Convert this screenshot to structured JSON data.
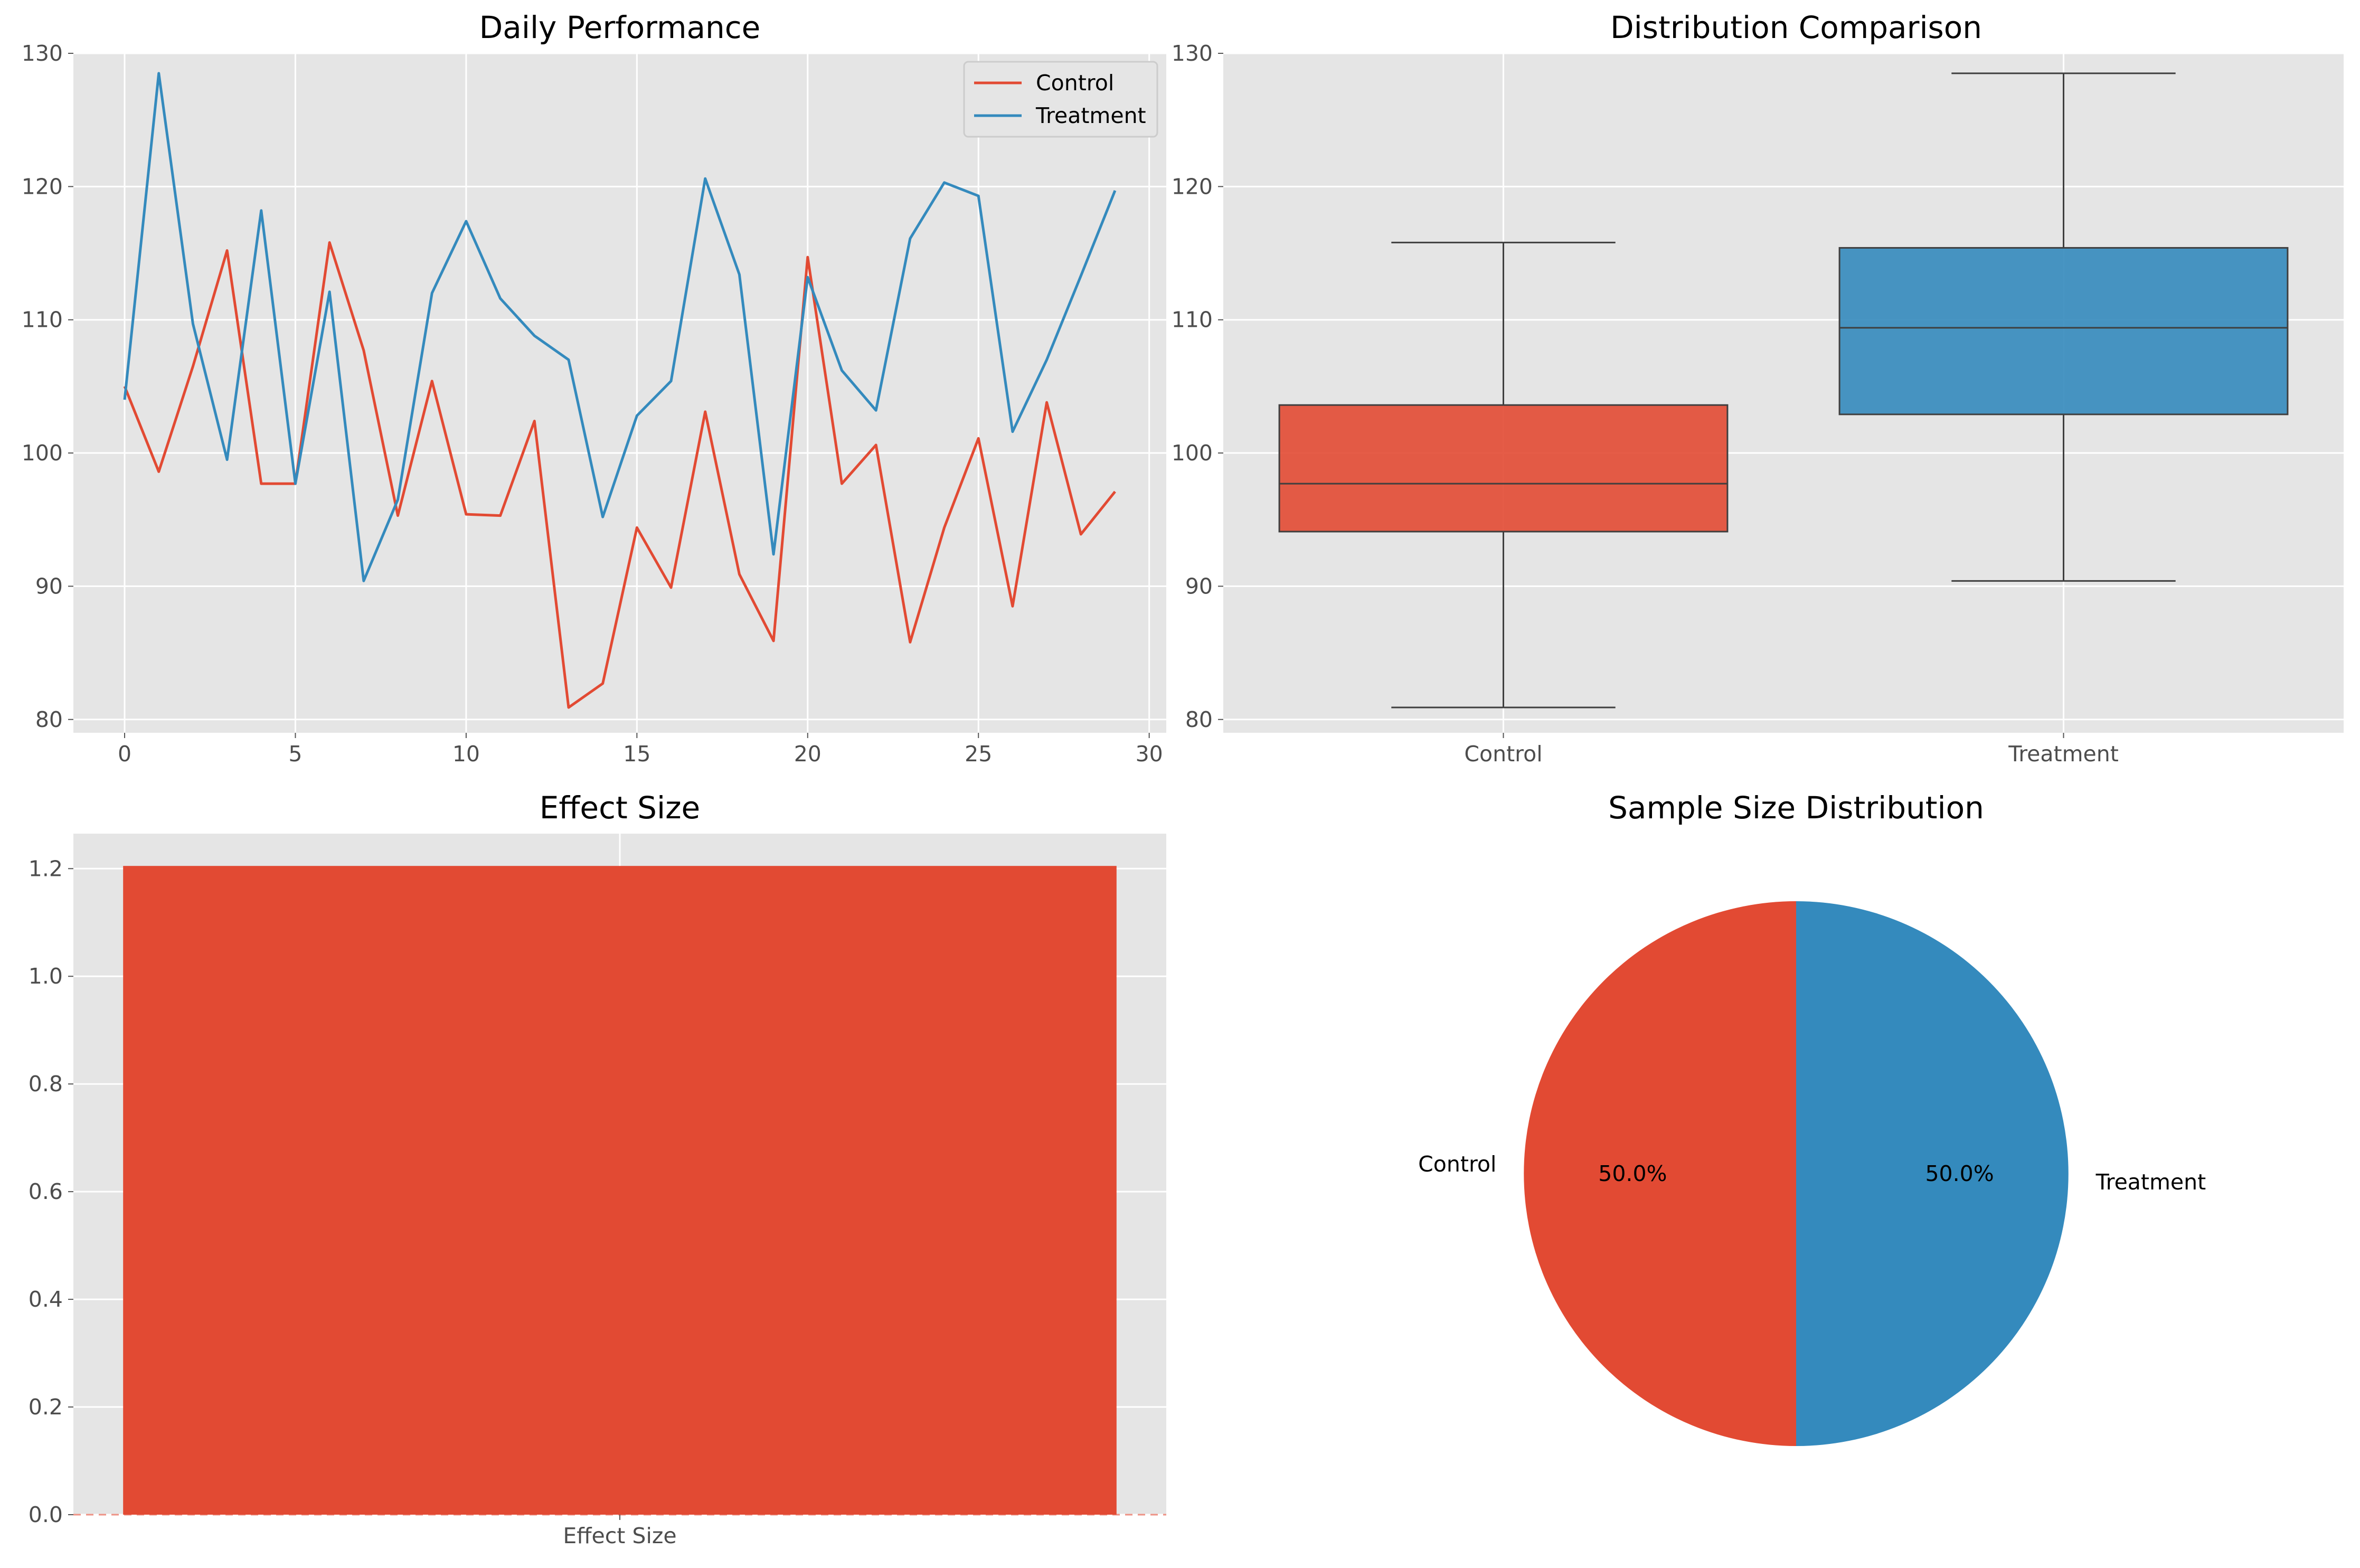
{
  "colors": {
    "red": "#E24A33",
    "blue": "#348ABD",
    "panel_bg": "#E5E5E5",
    "grid": "#FFFFFF",
    "tick_text": "#4D4D4D",
    "box_line": "#3F3F3F"
  },
  "chart_data": [
    {
      "type": "line",
      "title": "Daily Performance",
      "xlabel": "",
      "ylabel": "",
      "xlim": [
        -1.5,
        30.5
      ],
      "ylim": [
        79,
        130
      ],
      "xticks": [
        "0",
        "5",
        "10",
        "15",
        "20",
        "25",
        "30"
      ],
      "yticks": [
        "80",
        "90",
        "100",
        "110",
        "120",
        "130"
      ],
      "grid": true,
      "legend": "upper right",
      "x": [
        0,
        1,
        2,
        3,
        4,
        5,
        6,
        7,
        8,
        9,
        10,
        11,
        12,
        13,
        14,
        15,
        16,
        17,
        18,
        19,
        20,
        21,
        22,
        23,
        24,
        25,
        26,
        27,
        28,
        29
      ],
      "series": [
        {
          "name": "Control",
          "color": "#E24A33",
          "values": [
            105.0,
            98.6,
            106.5,
            115.2,
            97.7,
            97.7,
            115.8,
            107.7,
            95.3,
            105.4,
            95.4,
            95.3,
            102.4,
            80.9,
            82.7,
            94.4,
            89.9,
            103.1,
            90.9,
            85.9,
            114.7,
            97.7,
            100.6,
            85.8,
            94.4,
            101.1,
            88.5,
            103.8,
            93.9,
            97.1
          ]
        },
        {
          "name": "Treatment",
          "color": "#348ABD",
          "values": [
            104.0,
            128.5,
            109.7,
            99.5,
            118.2,
            97.7,
            112.1,
            90.4,
            96.5,
            112.0,
            117.4,
            111.6,
            108.8,
            107.0,
            95.2,
            102.8,
            105.4,
            120.6,
            113.4,
            92.4,
            113.2,
            106.2,
            103.2,
            116.1,
            120.3,
            119.3,
            101.6,
            107.0,
            113.3,
            119.7
          ]
        }
      ]
    },
    {
      "type": "box",
      "title": "Distribution Comparison",
      "ylim": [
        79,
        130
      ],
      "yticks": [
        "80",
        "90",
        "100",
        "110",
        "120",
        "130"
      ],
      "grid": true,
      "categories": [
        "Control",
        "Treatment"
      ],
      "boxes": [
        {
          "name": "Control",
          "color": "#E24A33",
          "min": 80.9,
          "q1": 94.1,
          "median": 97.7,
          "q3": 103.6,
          "max": 115.8
        },
        {
          "name": "Treatment",
          "color": "#348ABD",
          "min": 90.4,
          "q1": 102.9,
          "median": 109.4,
          "q3": 115.4,
          "max": 128.5
        }
      ]
    },
    {
      "type": "bar",
      "title": "Effect Size",
      "categories": [
        "Effect Size"
      ],
      "values": [
        1.205
      ],
      "ylim": [
        0,
        1.265
      ],
      "yticks": [
        "0.0",
        "0.2",
        "0.4",
        "0.6",
        "0.8",
        "1.0",
        "1.2"
      ],
      "grid": true,
      "color": "#E24A33"
    },
    {
      "type": "pie",
      "title": "Sample Size Distribution",
      "labels": [
        "Control",
        "Treatment"
      ],
      "values": [
        50,
        50
      ],
      "pct_labels": [
        "50.0%",
        "50.0%"
      ],
      "colors": [
        "#E24A33",
        "#348ABD"
      ]
    }
  ]
}
